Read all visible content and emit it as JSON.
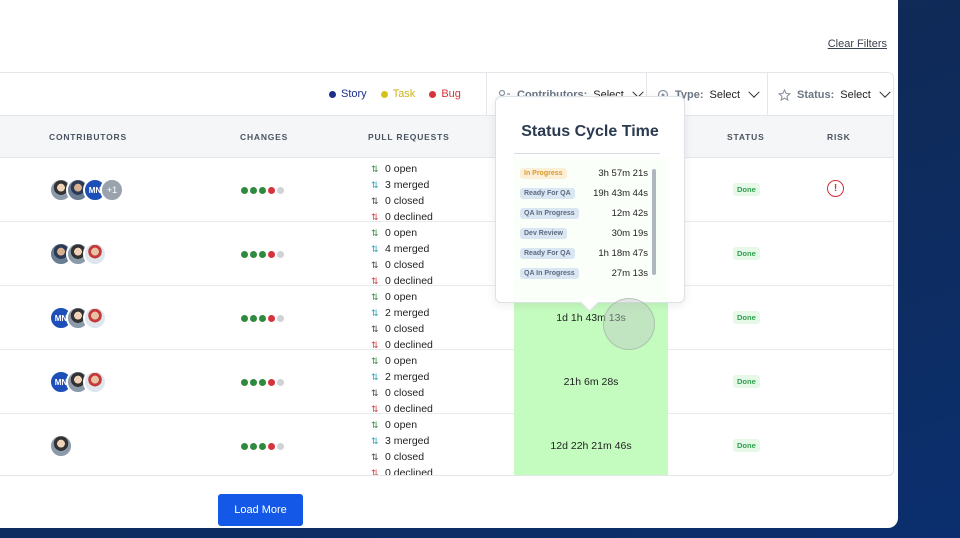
{
  "header": {
    "clear_filters": "Clear Filters"
  },
  "legend": [
    {
      "label": "Story",
      "color": "#1b2f8a"
    },
    {
      "label": "Task",
      "color": "#d4c21a"
    },
    {
      "label": "Bug",
      "color": "#d4343c"
    }
  ],
  "filters": {
    "contributors": {
      "label": "Contributors:",
      "value": "Select"
    },
    "type": {
      "label": "Type:",
      "value": "Select"
    },
    "status": {
      "label": "Status:",
      "value": "Select"
    }
  },
  "columns": {
    "contributors": "CONTRIBUTORS",
    "changes": "CHANGES",
    "pull_requests": "PULL REQUESTS",
    "status": "STATUS",
    "risk": "RISK"
  },
  "rows": [
    {
      "avatars": [
        "photo",
        "photo3",
        "MN",
        "+1"
      ],
      "prs": [
        "0 open",
        "3 merged",
        "0 closed",
        "0 declined"
      ],
      "cycle": "",
      "status": "Done",
      "risk": true
    },
    {
      "avatars": [
        "photo3",
        "photo",
        "photo2"
      ],
      "prs": [
        "0 open",
        "4 merged",
        "0 closed",
        "0 declined"
      ],
      "cycle": "",
      "status": "Done",
      "risk": false
    },
    {
      "avatars": [
        "MN",
        "photo",
        "photo2"
      ],
      "prs": [
        "0 open",
        "2 merged",
        "0 closed",
        "0 declined"
      ],
      "cycle": "1d 1h 43m 13s",
      "status": "Done",
      "risk": false
    },
    {
      "avatars": [
        "MN",
        "photo",
        "photo2"
      ],
      "prs": [
        "0 open",
        "2 merged",
        "0 closed",
        "0 declined"
      ],
      "cycle": "21h 6m 28s",
      "status": "Done",
      "risk": false
    },
    {
      "avatars": [
        "photo"
      ],
      "prs": [
        "0 open",
        "3 merged",
        "0 closed",
        "0 declined"
      ],
      "cycle": "12d 22h 21m 46s",
      "status": "Done",
      "risk": false
    }
  ],
  "tooltip": {
    "title": "Status Cycle Time",
    "entries": [
      {
        "status": "In Progress",
        "time": "3h 57m 21s"
      },
      {
        "status": "Ready For QA",
        "time": "19h 43m 44s"
      },
      {
        "status": "QA In Progress",
        "time": "12m 42s"
      },
      {
        "status": "Dev Review",
        "time": "30m 19s"
      },
      {
        "status": "Ready For QA",
        "time": "1h 18m 47s"
      },
      {
        "status": "QA In Progress",
        "time": "27m 13s"
      }
    ]
  },
  "load_more": "Load More"
}
